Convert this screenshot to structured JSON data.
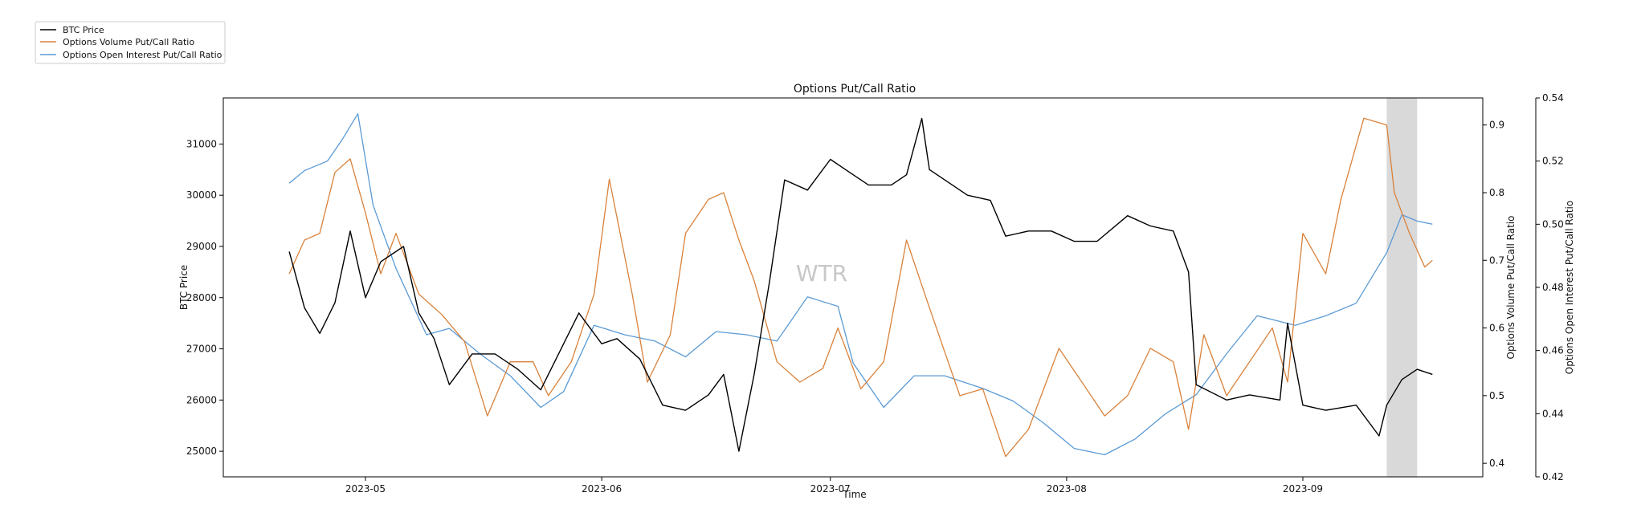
{
  "chart_data": {
    "type": "line",
    "title": "Options Put/Call Ratio",
    "xlabel": "Time",
    "x_ticks": [
      "2023-05",
      "2023-06",
      "2023-07",
      "2023-08",
      "2023-09"
    ],
    "x_range": [
      "2023-04-21",
      "2023-09-18"
    ],
    "watermark": "WTR",
    "grid": false,
    "legend_position": "top-left",
    "shaded_region": {
      "start": "2023-09-12",
      "end": "2023-09-16",
      "color": "#d9d9d9"
    },
    "axes": {
      "left": {
        "label": "BTC Price",
        "ylim": [
          24500,
          31900
        ],
        "ticks": [
          25000,
          26000,
          27000,
          28000,
          29000,
          30000,
          31000
        ]
      },
      "right1": {
        "label": "Options Volume Put/Call Ratio",
        "ylim": [
          0.38,
          0.94
        ],
        "ticks": [
          "0.4",
          "0.5",
          "0.6",
          "0.7",
          "0.8",
          "0.9"
        ]
      },
      "right2": {
        "label": "Options Open Interest Put/Call Ratio",
        "ylim": [
          0.42,
          0.54
        ],
        "ticks": [
          "0.42",
          "0.44",
          "0.46",
          "0.48",
          "0.50",
          "0.52",
          "0.54"
        ]
      }
    },
    "series": [
      {
        "name": "BTC Price",
        "color": "#000000",
        "axis": "left",
        "dates": [
          "2023-04-21",
          "2023-04-23",
          "2023-04-25",
          "2023-04-27",
          "2023-04-29",
          "2023-05-01",
          "2023-05-03",
          "2023-05-06",
          "2023-05-08",
          "2023-05-10",
          "2023-05-12",
          "2023-05-15",
          "2023-05-18",
          "2023-05-21",
          "2023-05-24",
          "2023-05-26",
          "2023-05-29",
          "2023-06-01",
          "2023-06-03",
          "2023-06-06",
          "2023-06-09",
          "2023-06-12",
          "2023-06-15",
          "2023-06-17",
          "2023-06-19",
          "2023-06-21",
          "2023-06-23",
          "2023-06-25",
          "2023-06-28",
          "2023-07-01",
          "2023-07-03",
          "2023-07-06",
          "2023-07-09",
          "2023-07-11",
          "2023-07-13",
          "2023-07-14",
          "2023-07-16",
          "2023-07-19",
          "2023-07-22",
          "2023-07-24",
          "2023-07-27",
          "2023-07-30",
          "2023-08-02",
          "2023-08-05",
          "2023-08-09",
          "2023-08-12",
          "2023-08-15",
          "2023-08-17",
          "2023-08-18",
          "2023-08-22",
          "2023-08-25",
          "2023-08-29",
          "2023-08-30",
          "2023-09-01",
          "2023-09-04",
          "2023-09-08",
          "2023-09-11",
          "2023-09-12",
          "2023-09-14",
          "2023-09-16",
          "2023-09-18"
        ],
        "values": [
          28900,
          27800,
          27300,
          27900,
          29300,
          28000,
          28700,
          29000,
          27700,
          27200,
          26300,
          26900,
          26900,
          26600,
          26200,
          26800,
          27700,
          27100,
          27200,
          26800,
          25900,
          25800,
          26100,
          26500,
          25000,
          26500,
          28300,
          30300,
          30100,
          30700,
          30500,
          30200,
          30200,
          30400,
          31500,
          30500,
          30300,
          30000,
          29900,
          29200,
          29300,
          29300,
          29100,
          29100,
          29600,
          29400,
          29300,
          28500,
          26300,
          26000,
          26100,
          26000,
          27500,
          25900,
          25800,
          25900,
          25300,
          25900,
          26400,
          26600,
          26500
        ],
        "y_range": [
          24800,
          31700
        ]
      },
      {
        "name": "Options Volume Put/Call Ratio",
        "color": "#d9823b",
        "axis": "right1",
        "dates": [
          "2023-04-21",
          "2023-04-23",
          "2023-04-25",
          "2023-04-27",
          "2023-04-29",
          "2023-05-01",
          "2023-05-03",
          "2023-05-05",
          "2023-05-08",
          "2023-05-11",
          "2023-05-14",
          "2023-05-17",
          "2023-05-20",
          "2023-05-23",
          "2023-05-25",
          "2023-05-28",
          "2023-05-31",
          "2023-06-02",
          "2023-06-05",
          "2023-06-07",
          "2023-06-10",
          "2023-06-12",
          "2023-06-15",
          "2023-06-17",
          "2023-06-19",
          "2023-06-21",
          "2023-06-24",
          "2023-06-27",
          "2023-06-30",
          "2023-07-02",
          "2023-07-05",
          "2023-07-08",
          "2023-07-11",
          "2023-07-14",
          "2023-07-18",
          "2023-07-21",
          "2023-07-24",
          "2023-07-27",
          "2023-07-31",
          "2023-08-03",
          "2023-08-06",
          "2023-08-09",
          "2023-08-12",
          "2023-08-15",
          "2023-08-17",
          "2023-08-19",
          "2023-08-22",
          "2023-08-25",
          "2023-08-28",
          "2023-08-30",
          "2023-09-01",
          "2023-09-04",
          "2023-09-06",
          "2023-09-09",
          "2023-09-12",
          "2023-09-13",
          "2023-09-15",
          "2023-09-17",
          "2023-09-18"
        ],
        "values": [
          0.68,
          0.73,
          0.74,
          0.83,
          0.85,
          0.77,
          0.68,
          0.74,
          0.65,
          0.62,
          0.58,
          0.47,
          0.55,
          0.55,
          0.5,
          0.55,
          0.65,
          0.82,
          0.65,
          0.52,
          0.59,
          0.74,
          0.79,
          0.8,
          0.73,
          0.67,
          0.55,
          0.52,
          0.54,
          0.6,
          0.51,
          0.55,
          0.73,
          0.63,
          0.5,
          0.51,
          0.41,
          0.45,
          0.57,
          0.52,
          0.47,
          0.5,
          0.57,
          0.55,
          0.45,
          0.59,
          0.5,
          0.55,
          0.6,
          0.52,
          0.74,
          0.68,
          0.79,
          0.91,
          0.9,
          0.8,
          0.74,
          0.69,
          0.7
        ],
        "y_range": [
          0.4,
          0.91
        ]
      },
      {
        "name": "Options Open Interest Put/Call Ratio",
        "color": "#5b9bd5",
        "axis": "right2",
        "dates": [
          "2023-04-21",
          "2023-04-23",
          "2023-04-26",
          "2023-04-28",
          "2023-04-30",
          "2023-05-02",
          "2023-05-05",
          "2023-05-09",
          "2023-05-12",
          "2023-05-16",
          "2023-05-20",
          "2023-05-24",
          "2023-05-27",
          "2023-05-31",
          "2023-06-04",
          "2023-06-08",
          "2023-06-12",
          "2023-06-16",
          "2023-06-20",
          "2023-06-24",
          "2023-06-28",
          "2023-07-02",
          "2023-07-04",
          "2023-07-08",
          "2023-07-12",
          "2023-07-16",
          "2023-07-21",
          "2023-07-25",
          "2023-07-29",
          "2023-08-02",
          "2023-08-06",
          "2023-08-10",
          "2023-08-14",
          "2023-08-18",
          "2023-08-22",
          "2023-08-26",
          "2023-08-31",
          "2023-09-04",
          "2023-09-08",
          "2023-09-12",
          "2023-09-14",
          "2023-09-16",
          "2023-09-18"
        ],
        "values": [
          0.513,
          0.517,
          0.52,
          0.527,
          0.535,
          0.506,
          0.486,
          0.465,
          0.467,
          0.459,
          0.452,
          0.442,
          0.447,
          0.468,
          0.465,
          0.463,
          0.458,
          0.466,
          0.465,
          0.463,
          0.477,
          0.474,
          0.456,
          0.442,
          0.452,
          0.452,
          0.448,
          0.444,
          0.437,
          0.429,
          0.427,
          0.432,
          0.44,
          0.446,
          0.459,
          0.471,
          0.468,
          0.471,
          0.475,
          0.491,
          0.503,
          0.501,
          0.5
        ],
        "y_range": [
          0.426,
          0.536
        ]
      }
    ]
  }
}
